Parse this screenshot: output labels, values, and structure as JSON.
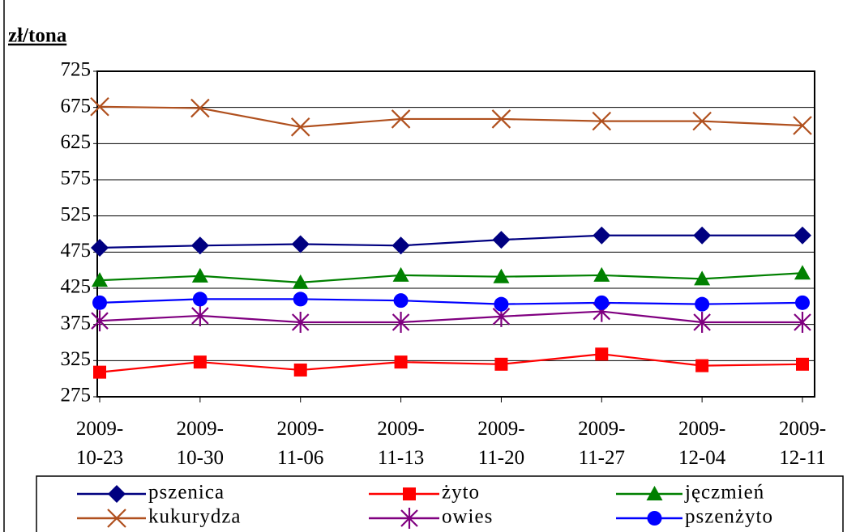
{
  "chart_data": {
    "type": "line",
    "title": "zł/tona",
    "categories": [
      "2009-10-23",
      "2009-10-30",
      "2009-11-06",
      "2009-11-13",
      "2009-11-20",
      "2009-11-27",
      "2009-12-04",
      "2009-12-11"
    ],
    "ylim": [
      275,
      725
    ],
    "yticks": [
      275,
      325,
      375,
      425,
      475,
      525,
      575,
      625,
      675,
      725
    ],
    "grid": true,
    "series": [
      {
        "name": "pszenica",
        "color": "#000080",
        "marker": "diamond",
        "values": [
          481,
          484,
          486,
          484,
          492,
          498,
          498,
          498
        ]
      },
      {
        "name": "żyto",
        "color": "#ff0000",
        "marker": "square",
        "values": [
          309,
          323,
          312,
          323,
          320,
          334,
          318,
          320
        ]
      },
      {
        "name": "jęczmień",
        "color": "#008000",
        "marker": "triangle",
        "values": [
          436,
          442,
          433,
          443,
          441,
          443,
          438,
          446
        ]
      },
      {
        "name": "kukurydza",
        "color": "#b0501e",
        "marker": "x",
        "values": [
          676,
          674,
          648,
          659,
          659,
          656,
          656,
          650
        ]
      },
      {
        "name": "owies",
        "color": "#800080",
        "marker": "star",
        "values": [
          380,
          387,
          378,
          378,
          386,
          393,
          378,
          378
        ]
      },
      {
        "name": "pszenżyto",
        "color": "#0000ff",
        "marker": "circle",
        "values": [
          405,
          410,
          410,
          408,
          403,
          405,
          403,
          405
        ]
      }
    ]
  }
}
